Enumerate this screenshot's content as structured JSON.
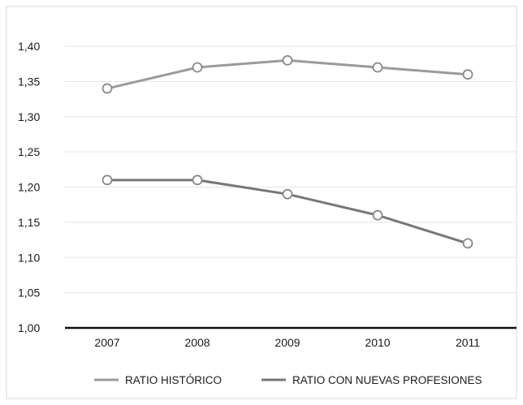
{
  "chart_data": {
    "type": "line",
    "title": "",
    "xlabel": "",
    "ylabel": "",
    "categories": [
      "2007",
      "2008",
      "2009",
      "2010",
      "2011"
    ],
    "y_ticks": [
      "1,00",
      "1,05",
      "1,10",
      "1,15",
      "1,20",
      "1,25",
      "1,30",
      "1,35",
      "1,40"
    ],
    "ylim": [
      1.0,
      1.4
    ],
    "grid": true,
    "legend_position": "bottom",
    "series": [
      {
        "name": "RATIO HISTÓRICO",
        "values": [
          1.34,
          1.37,
          1.38,
          1.37,
          1.36
        ],
        "color": "#9a9a9a"
      },
      {
        "name": "RATIO CON NUEVAS PROFESIONES",
        "values": [
          1.21,
          1.21,
          1.19,
          1.16,
          1.12
        ],
        "color": "#777777"
      }
    ]
  }
}
